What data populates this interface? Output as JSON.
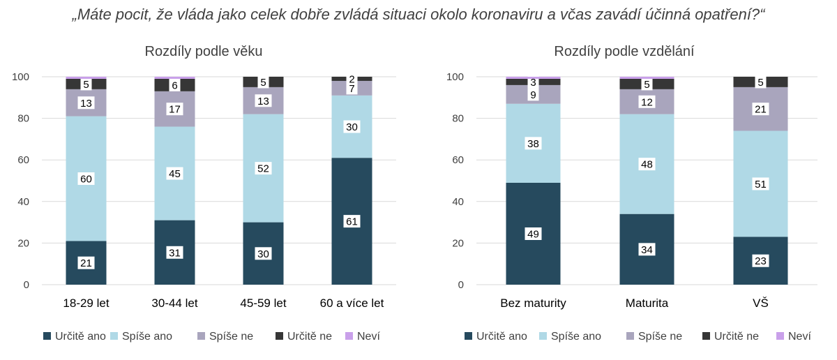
{
  "question": "„Máte pocit, že vláda jako celek dobře zvládá situaci okolo koronaviru a včas zavádí účinná opatření?“",
  "colors": {
    "urcite_ano": "#264a5e",
    "spise_ano": "#b0d9e6",
    "spise_ne": "#a9a5bd",
    "urcite_ne": "#363636",
    "nevi": "#c9a0ea",
    "grid": "#d9d9d9",
    "text": "#404040"
  },
  "chart_data": [
    {
      "type": "bar",
      "stacked": true,
      "title": "Rozdíly podle věku",
      "xlabel": "",
      "ylabel": "",
      "ylim": [
        0,
        100
      ],
      "yticks": [
        "0",
        "20",
        "40",
        "60",
        "80",
        "100"
      ],
      "categories": [
        "18-29 let",
        "30-44 let",
        "45-59 let",
        "60 a více let"
      ],
      "series": [
        {
          "name": "Určitě ano",
          "color_key": "urcite_ano",
          "values": [
            21,
            31,
            30,
            61
          ],
          "labels": [
            "21",
            "31",
            "30",
            "61"
          ]
        },
        {
          "name": "Spíše ano",
          "color_key": "spise_ano",
          "values": [
            60,
            45,
            52,
            30
          ],
          "labels": [
            "60",
            "45",
            "52",
            "30"
          ]
        },
        {
          "name": "Spíše ne",
          "color_key": "spise_ne",
          "values": [
            13,
            17,
            13,
            7
          ],
          "labels": [
            "13",
            "17",
            "13",
            "7"
          ]
        },
        {
          "name": "Určitě ne",
          "color_key": "urcite_ne",
          "values": [
            5,
            6,
            5,
            2
          ],
          "labels": [
            "5",
            "6",
            "5",
            "2"
          ]
        },
        {
          "name": "Neví",
          "color_key": "nevi",
          "values": [
            1,
            1,
            0,
            0
          ],
          "labels": [
            "",
            "",
            "",
            ""
          ]
        }
      ],
      "legend": [
        "Určitě ano",
        "Spíše ano",
        "Spíše ne",
        "Určitě ne",
        "Neví"
      ],
      "legend_position": "bottom"
    },
    {
      "type": "bar",
      "stacked": true,
      "title": "Rozdíly podle vzdělání",
      "xlabel": "",
      "ylabel": "",
      "ylim": [
        0,
        100
      ],
      "yticks": [
        "0",
        "20",
        "40",
        "60",
        "80",
        "100"
      ],
      "categories": [
        "Bez maturity",
        "Maturita",
        "VŠ"
      ],
      "series": [
        {
          "name": "Určitě ano",
          "color_key": "urcite_ano",
          "values": [
            49,
            34,
            23
          ],
          "labels": [
            "49",
            "34",
            "23"
          ]
        },
        {
          "name": "Spíše ano",
          "color_key": "spise_ano",
          "values": [
            38,
            48,
            51
          ],
          "labels": [
            "38",
            "48",
            "51"
          ]
        },
        {
          "name": "Spíše ne",
          "color_key": "spise_ne",
          "values": [
            9,
            12,
            21
          ],
          "labels": [
            "9",
            "12",
            "21"
          ]
        },
        {
          "name": "Určitě ne",
          "color_key": "urcite_ne",
          "values": [
            3,
            5,
            5
          ],
          "labels": [
            "3",
            "5",
            "5"
          ]
        },
        {
          "name": "Neví",
          "color_key": "nevi",
          "values": [
            1,
            1,
            0
          ],
          "labels": [
            "",
            "",
            ""
          ]
        }
      ],
      "legend": [
        "Určitě ano",
        "Spíše ano",
        "Spíše ne",
        "Určitě ne",
        "Neví"
      ],
      "legend_position": "bottom"
    }
  ]
}
